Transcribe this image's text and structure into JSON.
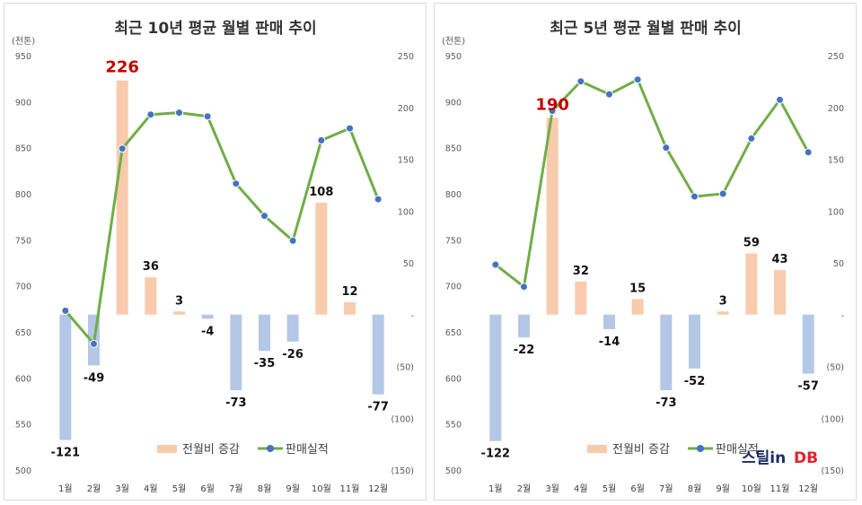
{
  "chart_data": [
    {
      "type": "bar+line",
      "title": "최근 10년 평균 월별 판매 추이",
      "left_axis_unit": "(천톤)",
      "left_axis": {
        "ylim": [
          500,
          950
        ],
        "ticks": [
          500,
          550,
          600,
          650,
          700,
          750,
          800,
          850,
          900,
          950
        ]
      },
      "right_axis": {
        "ylim": [
          -150,
          250
        ],
        "ticks": [
          "(150)",
          "(100)",
          "(50)",
          "-",
          "50",
          "100",
          "150",
          "200",
          "250"
        ]
      },
      "categories": [
        "1월",
        "2월",
        "3월",
        "4월",
        "5월",
        "6월",
        "7월",
        "8월",
        "9월",
        "10월",
        "11월",
        "12월"
      ],
      "series": [
        {
          "name": "전월비 증감",
          "kind": "bar",
          "axis": "right",
          "color": "#f8cbad",
          "negative_color": "#b4c7e7",
          "values": [
            -121,
            -49,
            226,
            36,
            3,
            -4,
            -73,
            -35,
            -26,
            108,
            12,
            -77
          ]
        },
        {
          "name": "판매실적",
          "kind": "line",
          "axis": "left",
          "color": "#70ad47",
          "marker_color": "#4472c4",
          "values": [
            673,
            637,
            849,
            886,
            888,
            884,
            811,
            776,
            749,
            858,
            871,
            794
          ]
        }
      ],
      "data_labels": [
        "-121",
        "-49",
        "226",
        "36",
        "3",
        "-4",
        "-73",
        "-35",
        "-26",
        "108",
        "12",
        "-77"
      ],
      "highlight_index": 2,
      "legend_position": "bottom"
    },
    {
      "type": "bar+line",
      "title": "최근 5년 평균 월별 판매 추이",
      "left_axis_unit": "(천톤)",
      "left_axis": {
        "ylim": [
          500,
          950
        ],
        "ticks": [
          500,
          550,
          600,
          650,
          700,
          750,
          800,
          850,
          900,
          950
        ]
      },
      "right_axis": {
        "ylim": [
          -150,
          250
        ],
        "ticks": [
          "(150)",
          "(100)",
          "(50)",
          "-",
          "50",
          "100",
          "150",
          "200",
          "250"
        ]
      },
      "categories": [
        "1월",
        "2월",
        "3월",
        "4월",
        "5월",
        "6월",
        "7월",
        "8월",
        "9월",
        "10월",
        "11월",
        "12월"
      ],
      "series": [
        {
          "name": "전월비 증감",
          "kind": "bar",
          "axis": "right",
          "color": "#f8cbad",
          "negative_color": "#b4c7e7",
          "values": [
            -122,
            -22,
            190,
            32,
            -14,
            15,
            -73,
            -52,
            3,
            59,
            43,
            -57
          ]
        },
        {
          "name": "판매실적",
          "kind": "line",
          "axis": "left",
          "color": "#70ad47",
          "marker_color": "#4472c4",
          "values": [
            723,
            699,
            890,
            922,
            908,
            924,
            850,
            797,
            800,
            860,
            902,
            845
          ]
        }
      ],
      "data_labels": [
        "-122",
        "-22",
        "190",
        "32",
        "-14",
        "15",
        "-73",
        "-52",
        "3",
        "59",
        "43",
        "-57"
      ],
      "highlight_index": 2,
      "legend_position": "bottom"
    }
  ],
  "logo": {
    "part1": "스틸in",
    "part2": "DB"
  }
}
